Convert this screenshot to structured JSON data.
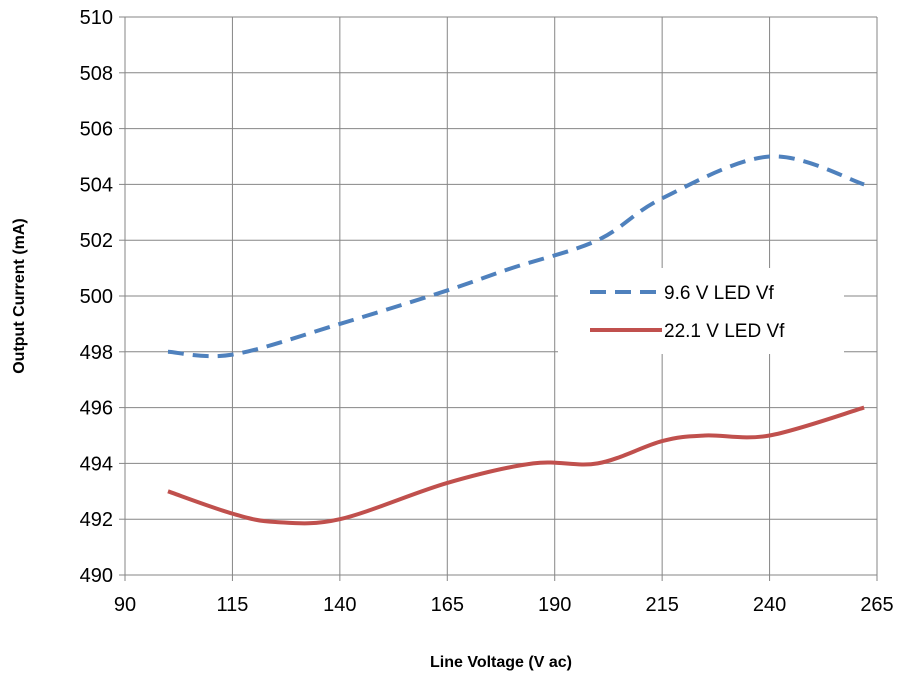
{
  "chart_data": {
    "type": "line",
    "title": "",
    "xlabel": "Line Voltage (V ac)",
    "ylabel": "Output Current (mA)",
    "xlim": [
      90,
      265
    ],
    "ylim": [
      490,
      510
    ],
    "x_ticks": [
      "90",
      "115",
      "140",
      "165",
      "190",
      "215",
      "240",
      "265"
    ],
    "y_ticks": [
      "490",
      "492",
      "494",
      "496",
      "498",
      "500",
      "502",
      "504",
      "506",
      "508",
      "510"
    ],
    "grid": true,
    "legend_position": "right",
    "series": [
      {
        "name": "9.6 V LED Vf",
        "color": "#4f81bd",
        "line_style": "dashed",
        "x": [
          100,
          115,
          140,
          165,
          180,
          200,
          215,
          240,
          262
        ],
        "y": [
          498,
          497.9,
          499,
          500.2,
          501,
          502,
          503.5,
          505,
          504
        ]
      },
      {
        "name": "22.1 V LED Vf",
        "color": "#c0504d",
        "line_style": "solid",
        "x": [
          100,
          115,
          125,
          140,
          165,
          185,
          200,
          215,
          225,
          240,
          262
        ],
        "y": [
          493,
          492.2,
          491.9,
          492,
          493.3,
          494,
          494,
          494.8,
          495,
          495,
          496
        ]
      }
    ]
  }
}
